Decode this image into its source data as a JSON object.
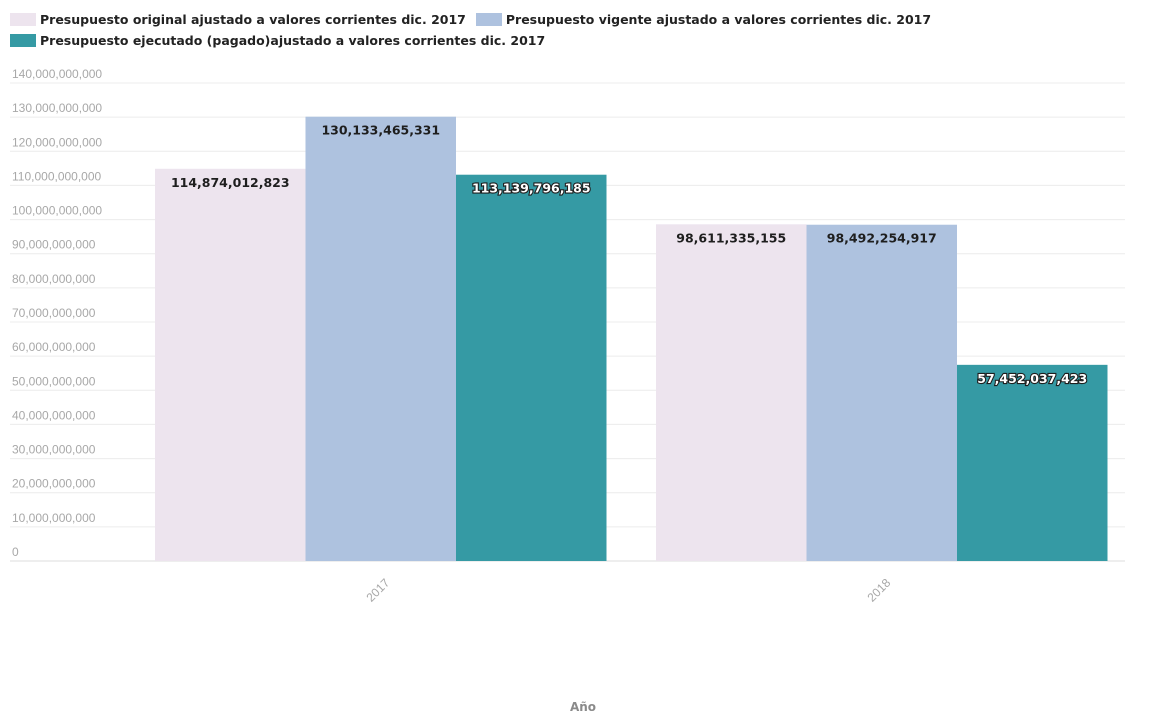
{
  "chart_data": {
    "type": "bar",
    "categories": [
      "2017",
      "2018"
    ],
    "series": [
      {
        "name": "Presupuesto original ajustado a valores corrientes dic. 2017",
        "color": "#ede4ee",
        "values": [
          114874012823,
          98611335155
        ],
        "labels": [
          "114,874,012,823",
          "98,611,335,155"
        ]
      },
      {
        "name": "Presupuesto vigente ajustado a valores corrientes dic. 2017",
        "color": "#aec2df",
        "values": [
          130133465331,
          98492254917
        ],
        "labels": [
          "130,133,465,331",
          "98,492,254,917"
        ]
      },
      {
        "name": "Presupuesto ejecutado (pagado)ajustado a valores corrientes dic. 2017",
        "color": "#359aa4",
        "values": [
          113139796185,
          57452037423
        ],
        "labels": [
          "113,139,796,185",
          "57,452,037,423"
        ]
      }
    ],
    "y_ticks": [
      {
        "value": 0,
        "label": "0"
      },
      {
        "value": 10000000000,
        "label": "10,000,000,000"
      },
      {
        "value": 20000000000,
        "label": "20,000,000,000"
      },
      {
        "value": 30000000000,
        "label": "30,000,000,000"
      },
      {
        "value": 40000000000,
        "label": "40,000,000,000"
      },
      {
        "value": 50000000000,
        "label": "50,000,000,000"
      },
      {
        "value": 60000000000,
        "label": "60,000,000,000"
      },
      {
        "value": 70000000000,
        "label": "70,000,000,000"
      },
      {
        "value": 80000000000,
        "label": "80,000,000,000"
      },
      {
        "value": 90000000000,
        "label": "90,000,000,000"
      },
      {
        "value": 100000000000,
        "label": "100,000,000,000"
      },
      {
        "value": 110000000000,
        "label": "110,000,000,000"
      },
      {
        "value": 120000000000,
        "label": "120,000,000,000"
      },
      {
        "value": 130000000000,
        "label": "130,000,000,000"
      },
      {
        "value": 140000000000,
        "label": "140,000,000,000"
      }
    ],
    "ylim": [
      0,
      140000000000
    ],
    "xlabel": "Año",
    "ylabel": "",
    "grid": true,
    "legend_position": "top-left"
  }
}
